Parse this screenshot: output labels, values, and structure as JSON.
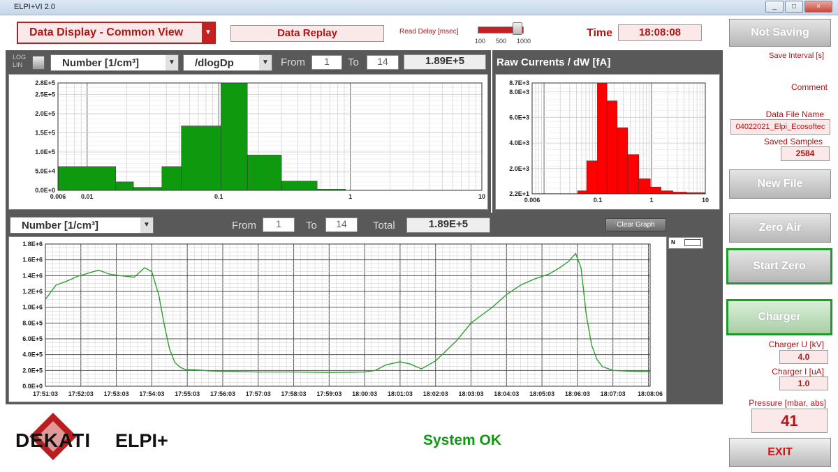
{
  "window": {
    "title": "ELPI+VI 2.0",
    "min": "_",
    "max": "□",
    "close": "×"
  },
  "header": {
    "mode_label": "Data Display - Common View",
    "replay_label": "Data Replay",
    "read_delay_label": "Read Delay [msec]",
    "slider_ticks": [
      "100",
      "500",
      "1000"
    ],
    "time_label": "Time",
    "time_value": "18:08:08"
  },
  "top_left": {
    "log": "LOG",
    "lin": "LIN",
    "quantity": "Number [1/cm³]",
    "norm": "/dlogDp",
    "from_label": "From",
    "from_value": "1",
    "to_label": "To",
    "to_value": "14",
    "total_value": "1.89E+5"
  },
  "top_right": {
    "title": "Raw Currents / dW [fA]"
  },
  "bottom": {
    "quantity": "Number  [1/cm³]",
    "from_label": "From",
    "from_value": "1",
    "to_label": "To",
    "to_value": "14",
    "total_label": "Total",
    "total_value": "1.89E+5",
    "clear_button": "Clear Graph",
    "legend_n": "N"
  },
  "sidebar": {
    "not_saving": "Not Saving",
    "save_interval": "Save Interval [s]",
    "comment": "Comment",
    "data_file_label": "Data File Name",
    "data_file_value": "04022021_Elpi_Ecosoftec",
    "saved_samples_label": "Saved Samples",
    "saved_samples_value": "2584",
    "new_file": "New File",
    "zero_air": "Zero Air",
    "start_zero": "Start Zero",
    "charger": "Charger",
    "charger_u_label": "Charger U [kV]",
    "charger_u_value": "4.0",
    "charger_i_label": "Charger I [uA]",
    "charger_i_value": "1.0",
    "pressure_label": "Pressure [mbar, abs]",
    "pressure_value": "41",
    "exit": "EXIT"
  },
  "footer": {
    "logo": "DEKATI",
    "product": "ELPI+",
    "status": "System OK"
  },
  "colors": {
    "accent": "#b01515",
    "green": "#0e9a0e",
    "red": "#ff0000",
    "line": "#2f9f2f"
  },
  "chart_data": [
    {
      "type": "bar",
      "xscale": "log",
      "x_ticks": [
        "0.006",
        "0.01",
        "0.1",
        "1",
        "10"
      ],
      "y_ticks": [
        "0.0E+0",
        "5.0E+4",
        "1.0E+5",
        "1.5E+5",
        "2.0E+5",
        "2.5E+5",
        "2.8E+5"
      ],
      "ylim": [
        0,
        280000
      ],
      "bins": [
        {
          "lo": 0.006,
          "hi": 0.0165,
          "v": 62000
        },
        {
          "lo": 0.0165,
          "hi": 0.0225,
          "v": 22000
        },
        {
          "lo": 0.0225,
          "hi": 0.037,
          "v": 8000
        },
        {
          "lo": 0.037,
          "hi": 0.052,
          "v": 62000
        },
        {
          "lo": 0.052,
          "hi": 0.104,
          "v": 168000
        },
        {
          "lo": 0.104,
          "hi": 0.165,
          "v": 282000
        },
        {
          "lo": 0.165,
          "hi": 0.3,
          "v": 92000
        },
        {
          "lo": 0.3,
          "hi": 0.56,
          "v": 24000
        },
        {
          "lo": 0.56,
          "hi": 0.92,
          "v": 3000
        },
        {
          "lo": 0.92,
          "hi": 10,
          "v": 0
        }
      ]
    },
    {
      "type": "bar",
      "title": "Raw Currents / dW [fA]",
      "xscale": "log",
      "x_ticks": [
        "0.006",
        "0.1",
        "1",
        "10"
      ],
      "y_ticks": [
        "2.2E+1",
        "2.0E+3",
        "4.0E+3",
        "6.0E+3",
        "8.0E+3",
        "8.7E+3"
      ],
      "ylim": [
        22,
        8700
      ],
      "bins": [
        {
          "lo": 0.006,
          "hi": 0.042,
          "v": 40
        },
        {
          "lo": 0.042,
          "hi": 0.062,
          "v": 260
        },
        {
          "lo": 0.062,
          "hi": 0.098,
          "v": 2600
        },
        {
          "lo": 0.098,
          "hi": 0.148,
          "v": 8750
        },
        {
          "lo": 0.148,
          "hi": 0.23,
          "v": 7300
        },
        {
          "lo": 0.23,
          "hi": 0.36,
          "v": 5200
        },
        {
          "lo": 0.36,
          "hi": 0.58,
          "v": 3100
        },
        {
          "lo": 0.58,
          "hi": 0.95,
          "v": 1200
        },
        {
          "lo": 0.95,
          "hi": 1.5,
          "v": 560
        },
        {
          "lo": 1.5,
          "hi": 2.5,
          "v": 260
        },
        {
          "lo": 2.5,
          "hi": 4.5,
          "v": 160
        },
        {
          "lo": 4.5,
          "hi": 10,
          "v": 110
        }
      ]
    },
    {
      "type": "line",
      "series_name": "N",
      "x_ticks": [
        "17:51:03",
        "17:52:03",
        "17:53:03",
        "17:54:03",
        "17:55:03",
        "17:56:03",
        "17:57:03",
        "17:58:03",
        "17:59:03",
        "18:00:03",
        "18:01:03",
        "18:02:03",
        "18:03:03",
        "18:04:03",
        "18:05:03",
        "18:06:03",
        "18:07:03",
        "18:08:06"
      ],
      "y_ticks": [
        "0.0E+0",
        "2.0E+5",
        "4.0E+5",
        "6.0E+5",
        "8.0E+5",
        "1.0E+6",
        "1.2E+6",
        "1.4E+6",
        "1.6E+6",
        "1.8E+6"
      ],
      "ylim": [
        0,
        1800000
      ],
      "xlim_min": [
        0,
        17.05
      ],
      "x": [
        0,
        0.3,
        0.6,
        0.9,
        1.2,
        1.5,
        1.8,
        2.1,
        2.5,
        2.8,
        3.0,
        3.2,
        3.35,
        3.5,
        3.65,
        3.8,
        3.95,
        4.2,
        4.6,
        5.0,
        5.5,
        6.0,
        7.0,
        8.0,
        9.0,
        9.3,
        9.6,
        10.0,
        10.3,
        10.6,
        11.0,
        11.3,
        11.6,
        12.0,
        12.3,
        12.6,
        13.0,
        13.4,
        13.8,
        14.2,
        14.5,
        14.75,
        14.95,
        15.1,
        15.25,
        15.4,
        15.55,
        15.7,
        16.0,
        16.5,
        17.05
      ],
      "y": [
        1100000,
        1280000,
        1330000,
        1390000,
        1430000,
        1470000,
        1420000,
        1400000,
        1380000,
        1500000,
        1450000,
        1150000,
        780000,
        470000,
        300000,
        240000,
        210000,
        210000,
        195000,
        190000,
        185000,
        180000,
        180000,
        175000,
        180000,
        200000,
        270000,
        310000,
        280000,
        220000,
        320000,
        450000,
        580000,
        800000,
        900000,
        1000000,
        1160000,
        1280000,
        1360000,
        1420000,
        1500000,
        1580000,
        1680000,
        1500000,
        900000,
        520000,
        340000,
        250000,
        200000,
        190000,
        185000
      ]
    }
  ]
}
